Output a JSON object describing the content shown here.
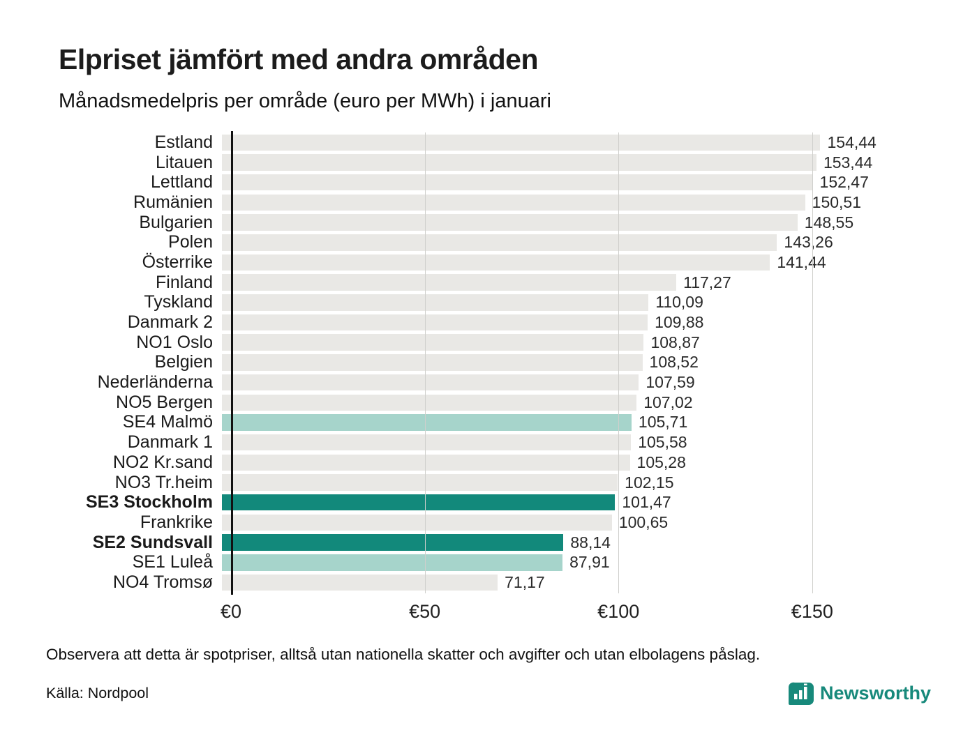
{
  "header": {
    "title": "Elpriset jämfört med andra områden",
    "subtitle": "Månadsmedelpris per område (euro per MWh) i januari"
  },
  "colors": {
    "bar_default": "#e9e8e5",
    "bar_light": "#a6d4cb",
    "bar_dark": "#12897b",
    "brand": "#17897b",
    "axis": "#111111",
    "gridline": "#cfcfcc"
  },
  "chart_data": {
    "type": "bar",
    "orientation": "horizontal",
    "title": "Elpriset jämfört med andra områden",
    "subtitle": "Månadsmedelpris per område (euro per MWh) i januari",
    "unit": "euro per MWh",
    "xlabel": "",
    "ylabel": "",
    "xlim": [
      0,
      169.3
    ],
    "grid": "vertical",
    "legend": "none",
    "xticks": [
      {
        "label": "€0",
        "value": 0
      },
      {
        "label": "€50",
        "value": 50
      },
      {
        "label": "€100",
        "value": 100
      },
      {
        "label": "€150",
        "value": 150
      }
    ],
    "rows": [
      {
        "label": "Estland",
        "value": 154.44,
        "display": "154,44",
        "style": "default",
        "bold": false
      },
      {
        "label": "Litauen",
        "value": 153.44,
        "display": "153,44",
        "style": "default",
        "bold": false
      },
      {
        "label": "Lettland",
        "value": 152.47,
        "display": "152,47",
        "style": "default",
        "bold": false
      },
      {
        "label": "Rumänien",
        "value": 150.51,
        "display": "150,51",
        "style": "default",
        "bold": false
      },
      {
        "label": "Bulgarien",
        "value": 148.55,
        "display": "148,55",
        "style": "default",
        "bold": false
      },
      {
        "label": "Polen",
        "value": 143.26,
        "display": "143,26",
        "style": "default",
        "bold": false
      },
      {
        "label": "Österrike",
        "value": 141.44,
        "display": "141,44",
        "style": "default",
        "bold": false
      },
      {
        "label": "Finland",
        "value": 117.27,
        "display": "117,27",
        "style": "default",
        "bold": false
      },
      {
        "label": "Tyskland",
        "value": 110.09,
        "display": "110,09",
        "style": "default",
        "bold": false
      },
      {
        "label": "Danmark 2",
        "value": 109.88,
        "display": "109,88",
        "style": "default",
        "bold": false
      },
      {
        "label": "NO1 Oslo",
        "value": 108.87,
        "display": "108,87",
        "style": "default",
        "bold": false
      },
      {
        "label": "Belgien",
        "value": 108.52,
        "display": "108,52",
        "style": "default",
        "bold": false
      },
      {
        "label": "Nederländerna",
        "value": 107.59,
        "display": "107,59",
        "style": "default",
        "bold": false
      },
      {
        "label": "NO5 Bergen",
        "value": 107.02,
        "display": "107,02",
        "style": "default",
        "bold": false
      },
      {
        "label": "SE4 Malmö",
        "value": 105.71,
        "display": "105,71",
        "style": "light",
        "bold": false
      },
      {
        "label": "Danmark 1",
        "value": 105.58,
        "display": "105,58",
        "style": "default",
        "bold": false
      },
      {
        "label": "NO2 Kr.sand",
        "value": 105.28,
        "display": "105,28",
        "style": "default",
        "bold": false
      },
      {
        "label": "NO3 Tr.heim",
        "value": 102.15,
        "display": "102,15",
        "style": "default",
        "bold": false
      },
      {
        "label": "SE3 Stockholm",
        "value": 101.47,
        "display": "101,47",
        "style": "dark",
        "bold": true
      },
      {
        "label": "Frankrike",
        "value": 100.65,
        "display": "100,65",
        "style": "default",
        "bold": false
      },
      {
        "label": "SE2 Sundsvall",
        "value": 88.14,
        "display": "88,14",
        "style": "dark",
        "bold": true
      },
      {
        "label": "SE1 Luleå",
        "value": 87.91,
        "display": "87,91",
        "style": "light",
        "bold": false
      },
      {
        "label": "NO4 Tromsø",
        "value": 71.17,
        "display": "71,17",
        "style": "default",
        "bold": false
      }
    ]
  },
  "footer": {
    "note": "Observera att detta är spotpriser, alltså utan nationella skatter och avgifter och utan elbolagens påslag.",
    "source": "Källa: Nordpool",
    "brand": "Newsworthy"
  }
}
